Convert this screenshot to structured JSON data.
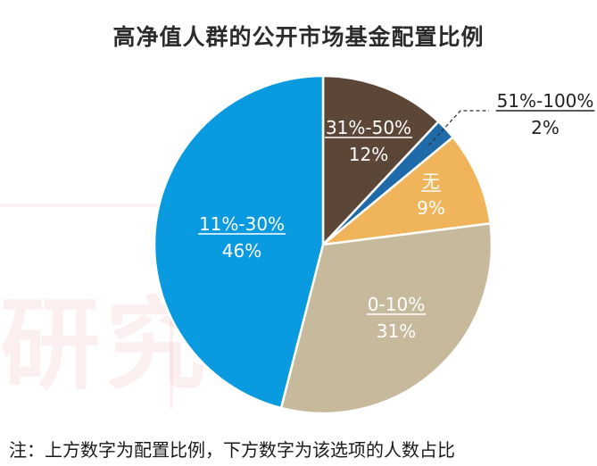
{
  "watermark": "研究",
  "note": "注：上方数字为配置比例，下方数字为该选项的人数占比",
  "chart_data": {
    "type": "pie",
    "title": "高净值人群的公开市场基金配置比例",
    "start_angle": 0,
    "slices": [
      {
        "label": "31%-50%",
        "value": 12,
        "value_label": "12%",
        "color": "#5c4637",
        "text_color": "#ffffff"
      },
      {
        "label": "51%-100%",
        "value": 2,
        "value_label": "2%",
        "color": "#1f6aa8",
        "text_color": "#222222",
        "external": true
      },
      {
        "label": "无",
        "value": 9,
        "value_label": "9%",
        "color": "#f0b45a",
        "text_color": "#ffffff"
      },
      {
        "label": "0-10%",
        "value": 31,
        "value_label": "31%",
        "color": "#c7b99c",
        "text_color": "#ffffff"
      },
      {
        "label": "11%-30%",
        "value": 46,
        "value_label": "46%",
        "color": "#0a9ae0",
        "text_color": "#ffffff"
      }
    ]
  }
}
